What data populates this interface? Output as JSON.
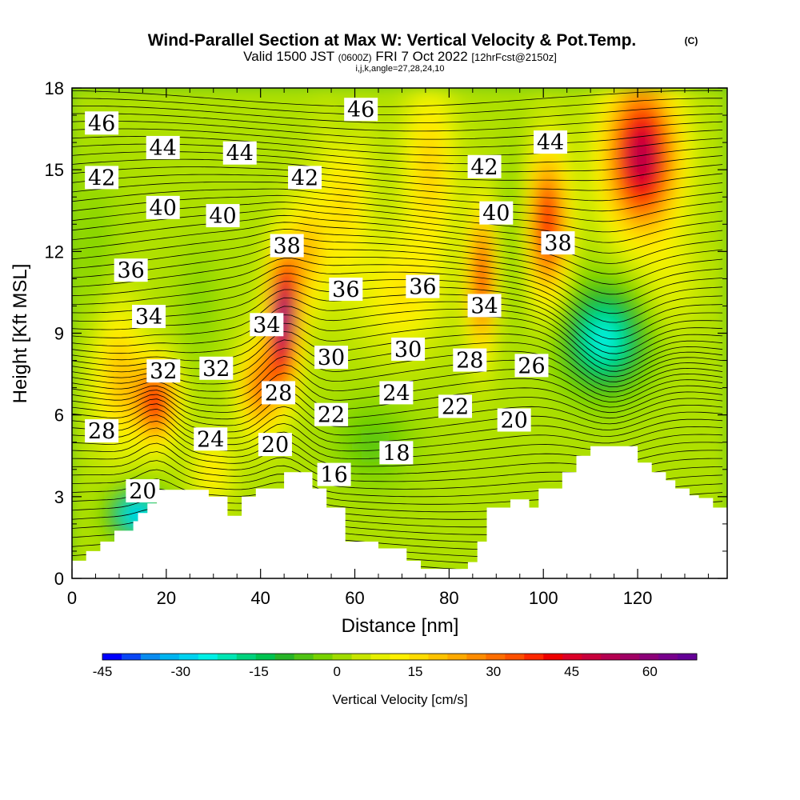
{
  "chart_data": {
    "type": "heatmap",
    "title": "Wind-Parallel Section at Max W: Vertical Velocity & Pot.Temp.",
    "title_mark": "(C)",
    "subtitle": {
      "valid_prefix": "Valid 1500 JST",
      "utc": "(0600Z)",
      "date": "FRI 7 Oct 2022",
      "forecast": "[12hrFcst@2150z]"
    },
    "grid_info": "i,j,k,angle=27,28,24,10",
    "xlabel": "Distance [nm]",
    "ylabel": "Height [Kft MSL]",
    "xlim": [
      0,
      139
    ],
    "ylim": [
      0,
      18
    ],
    "x_ticks": [
      "0",
      "20",
      "40",
      "60",
      "80",
      "100",
      "120"
    ],
    "y_ticks": [
      "0",
      "3",
      "6",
      "9",
      "12",
      "15",
      "18"
    ],
    "colorbar": {
      "label": "Vertical Velocity [cm/s]",
      "range": [
        -45,
        69
      ],
      "ticks": [
        "-45",
        "-30",
        "-15",
        "0",
        "15",
        "30",
        "45",
        "60"
      ],
      "colors": [
        "#0000ff",
        "#0a46f5",
        "#0a8cf0",
        "#00b4f0",
        "#00d2f0",
        "#00f0e6",
        "#00e6b4",
        "#00d27d",
        "#00c350",
        "#28b428",
        "#50c314",
        "#78d200",
        "#a0dc00",
        "#c8e600",
        "#e6f000",
        "#fff000",
        "#ffdc00",
        "#ffc300",
        "#ffaa00",
        "#ff8c00",
        "#ff6e00",
        "#ff5000",
        "#ff2800",
        "#ee0000",
        "#dc0028",
        "#c8003c",
        "#b40050",
        "#a00064",
        "#8c0078",
        "#78008c",
        "#640096"
      ]
    },
    "contour_field": "Potential temperature (°C)",
    "contour_labels": [
      {
        "text": "46",
        "x": 6.3,
        "y": 16.7
      },
      {
        "text": "44",
        "x": 19.3,
        "y": 15.8
      },
      {
        "text": "44",
        "x": 35.6,
        "y": 15.6
      },
      {
        "text": "46",
        "x": 61.3,
        "y": 17.2
      },
      {
        "text": "44",
        "x": 101.5,
        "y": 16.0
      },
      {
        "text": "42",
        "x": 6.3,
        "y": 14.7
      },
      {
        "text": "42",
        "x": 49.4,
        "y": 14.7
      },
      {
        "text": "42",
        "x": 87.5,
        "y": 15.1
      },
      {
        "text": "40",
        "x": 19.3,
        "y": 13.6
      },
      {
        "text": "40",
        "x": 32.0,
        "y": 13.3
      },
      {
        "text": "40",
        "x": 90.0,
        "y": 13.4
      },
      {
        "text": "38",
        "x": 45.6,
        "y": 12.2
      },
      {
        "text": "38",
        "x": 103.1,
        "y": 12.3
      },
      {
        "text": "36",
        "x": 12.5,
        "y": 11.3
      },
      {
        "text": "36",
        "x": 58.1,
        "y": 10.6
      },
      {
        "text": "36",
        "x": 74.4,
        "y": 10.7
      },
      {
        "text": "34",
        "x": 16.3,
        "y": 9.6
      },
      {
        "text": "34",
        "x": 41.3,
        "y": 9.3
      },
      {
        "text": "34",
        "x": 87.5,
        "y": 10.0
      },
      {
        "text": "32",
        "x": 19.4,
        "y": 7.6
      },
      {
        "text": "32",
        "x": 30.6,
        "y": 7.7
      },
      {
        "text": "30",
        "x": 55.0,
        "y": 8.1
      },
      {
        "text": "30",
        "x": 71.3,
        "y": 8.4
      },
      {
        "text": "28",
        "x": 6.3,
        "y": 5.4
      },
      {
        "text": "28",
        "x": 43.8,
        "y": 6.8
      },
      {
        "text": "28",
        "x": 84.4,
        "y": 8.0
      },
      {
        "text": "26",
        "x": 97.5,
        "y": 7.8
      },
      {
        "text": "24",
        "x": 29.4,
        "y": 5.1
      },
      {
        "text": "24",
        "x": 68.8,
        "y": 6.8
      },
      {
        "text": "22",
        "x": 55.0,
        "y": 6.0
      },
      {
        "text": "22",
        "x": 81.3,
        "y": 6.3
      },
      {
        "text": "20",
        "x": 15.0,
        "y": 3.2
      },
      {
        "text": "20",
        "x": 43.1,
        "y": 4.9
      },
      {
        "text": "20",
        "x": 93.8,
        "y": 5.8
      },
      {
        "text": "18",
        "x": 68.8,
        "y": 4.6
      },
      {
        "text": "16",
        "x": 55.6,
        "y": 3.8
      }
    ]
  }
}
